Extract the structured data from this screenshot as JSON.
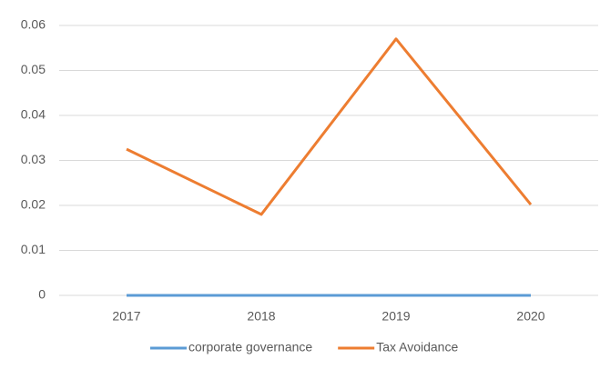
{
  "chart_data": {
    "type": "line",
    "categories": [
      "2017",
      "2018",
      "2019",
      "2020"
    ],
    "series": [
      {
        "name": "corporate governance",
        "color": "#5b9bd5",
        "values": [
          0,
          0,
          0,
          0
        ]
      },
      {
        "name": "Tax Avoidance",
        "color": "#ed7d31",
        "values": [
          0.0325,
          0.018,
          0.057,
          0.0202
        ]
      }
    ],
    "ylim": [
      0,
      0.06
    ],
    "yticks": [
      0,
      0.01,
      0.02,
      0.03,
      0.04,
      0.05,
      0.06
    ],
    "grid": true,
    "legend": "bottom"
  }
}
